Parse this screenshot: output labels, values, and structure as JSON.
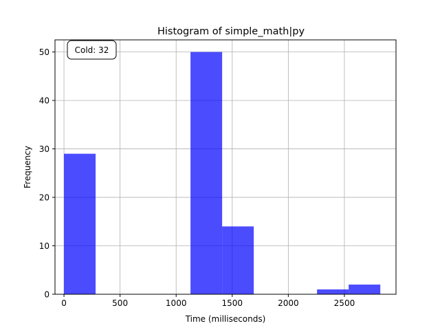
{
  "chart_data": {
    "type": "bar",
    "title": "Histogram of simple_math|py",
    "xlabel": "Time (milliseconds)",
    "ylabel": "Frequency",
    "xlim": [
      -80,
      2960
    ],
    "ylim": [
      0,
      52.5
    ],
    "xticks": [
      0,
      500,
      1000,
      1500,
      2000,
      2500
    ],
    "yticks": [
      0,
      10,
      20,
      30,
      40,
      50
    ],
    "grid": true,
    "bar_color": "#0000ff",
    "bar_opacity": 0.7,
    "bins": [
      {
        "x0": 0,
        "x1": 282,
        "count": 29
      },
      {
        "x0": 282,
        "x1": 564,
        "count": 0
      },
      {
        "x0": 564,
        "x1": 846,
        "count": 0
      },
      {
        "x0": 846,
        "x1": 1128,
        "count": 0
      },
      {
        "x0": 1128,
        "x1": 1410,
        "count": 50
      },
      {
        "x0": 1410,
        "x1": 1692,
        "count": 14
      },
      {
        "x0": 1692,
        "x1": 1974,
        "count": 0
      },
      {
        "x0": 1974,
        "x1": 2256,
        "count": 0
      },
      {
        "x0": 2256,
        "x1": 2538,
        "count": 1
      },
      {
        "x0": 2538,
        "x1": 2820,
        "count": 2
      }
    ],
    "annotation": {
      "text": "Cold: 32",
      "placement": "top-left"
    }
  }
}
